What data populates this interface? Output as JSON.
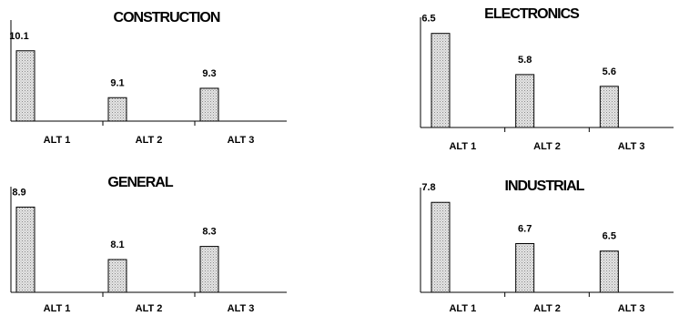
{
  "chart_data": [
    {
      "type": "bar",
      "title": "CONSTRUCTION",
      "categories": [
        "ALT 1",
        "ALT 2",
        "ALT 3"
      ],
      "values": [
        10.1,
        9.1,
        9.3
      ],
      "ylim": [
        8.6,
        10.6
      ]
    },
    {
      "type": "bar",
      "title": "ELECTRONICS",
      "categories": [
        "ALT 1",
        "ALT 2",
        "ALT 3"
      ],
      "values": [
        6.5,
        5.8,
        5.6
      ],
      "ylim": [
        4.9,
        6.65
      ]
    },
    {
      "type": "bar",
      "title": "GENERAL",
      "categories": [
        "ALT 1",
        "ALT 2",
        "ALT 3"
      ],
      "values": [
        8.9,
        8.1,
        8.3
      ],
      "ylim": [
        7.6,
        9.1
      ]
    },
    {
      "type": "bar",
      "title": "INDUSTRIAL",
      "categories": [
        "ALT 1",
        "ALT 2",
        "ALT 3"
      ],
      "values": [
        7.8,
        6.7,
        6.5
      ],
      "ylim": [
        5.4,
        8.0
      ]
    }
  ]
}
